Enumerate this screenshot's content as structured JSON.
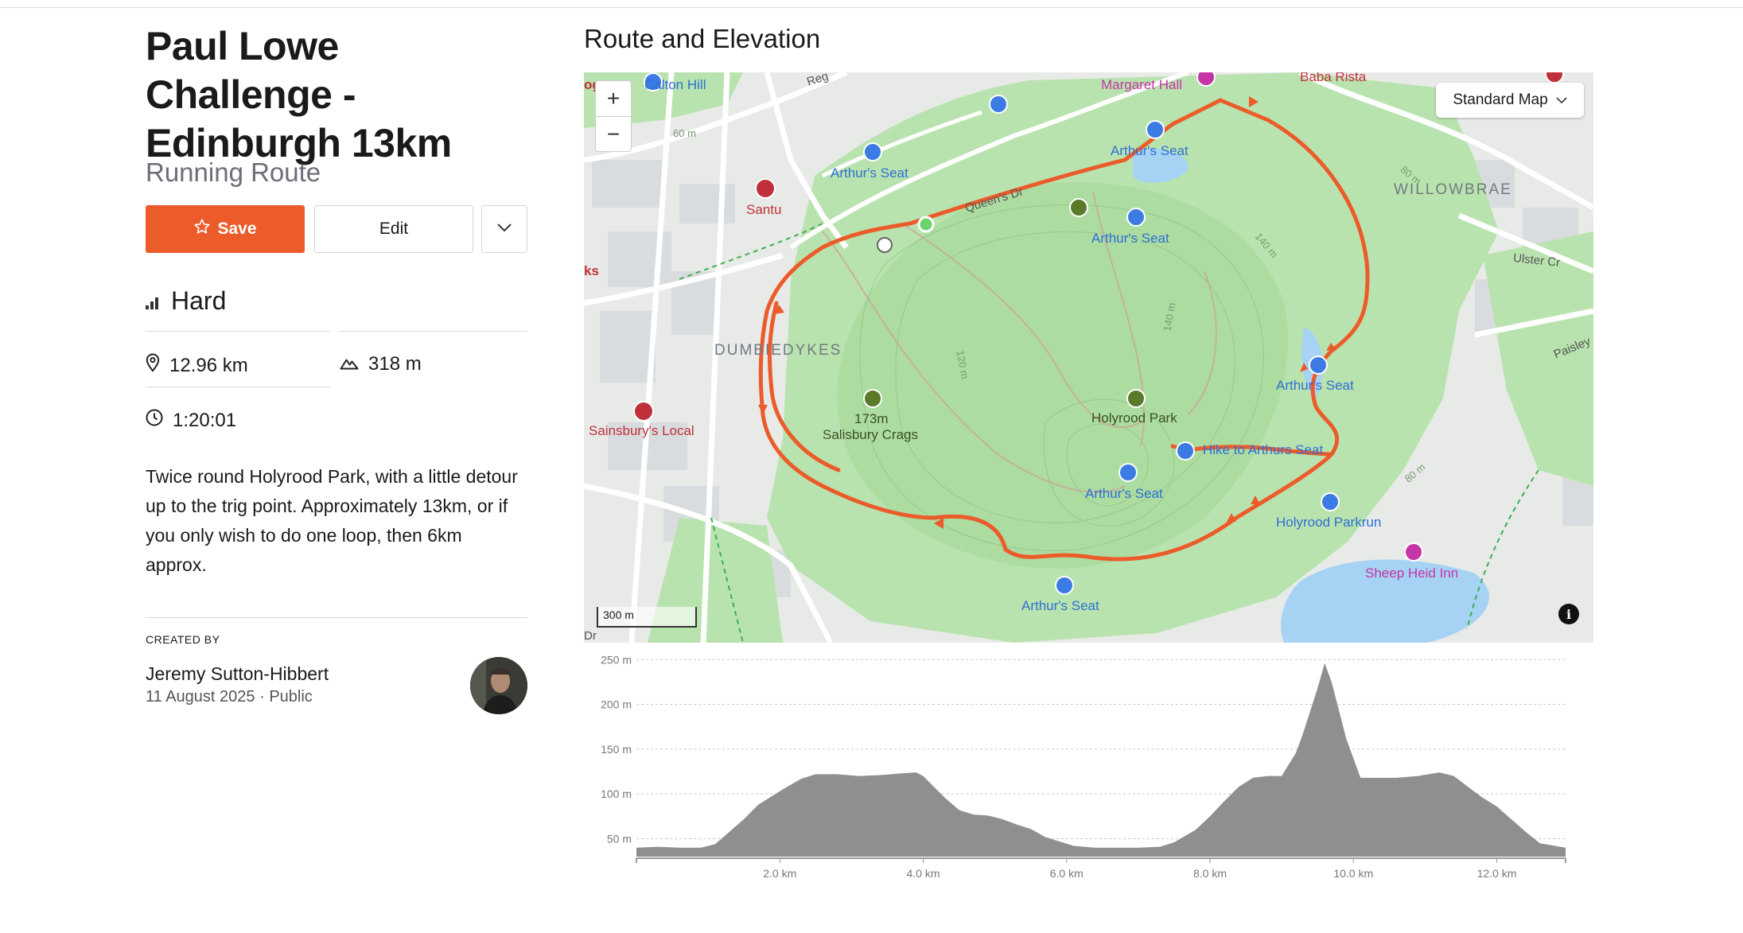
{
  "route": {
    "title": "Paul Lowe Challenge - Edinburgh 13km",
    "type": "Running Route",
    "save_label": "Save",
    "edit_label": "Edit",
    "difficulty": "Hard",
    "distance": "12.96 km",
    "elevation_gain": "318 m",
    "duration": "1:20:01",
    "description": "Twice round Holyrood Park, with a little detour up to the trig point. Approximately 13km, or if you only wish to do one loop, then 6km approx.",
    "created_by_label": "CREATED BY",
    "author": "Jeremy Sutton-Hibbert",
    "date": "11 August 2025",
    "visibility": "Public",
    "accent_color": "#ec5b2a"
  },
  "map": {
    "section_title": "Route and Elevation",
    "map_type": "Standard Map",
    "scale_label": "300 m",
    "zoom_in": "+",
    "zoom_out": "−",
    "labels": {
      "calton_hill": "Calton Hill",
      "margaret_hall": "Margaret Hall",
      "baba_rista": "Baba Rista",
      "arthurs_seat_1": "Arthur's Seat",
      "arthurs_seat_2": "Arthur's Seat",
      "arthurs_seat_3": "Arthur's Seat",
      "arthurs_seat_4": "Arthur's Seat",
      "arthurs_seat_5": "Arthur's Seat",
      "arthurs_seat_6": "Arthur's Seat",
      "santu": "Santu",
      "queens_dr": "Queen's Dr",
      "willowbrae": "WILLOWBRAE",
      "ulster_cr": "Ulster Cr",
      "paisley": "Paisley",
      "dumbiedykes": "DUMBIEDYKES",
      "sainsburys": "Sainsbury's Local",
      "summit_height": "173m",
      "salisbury_crags": "Salisbury Crags",
      "holyrood_park": "Holyrood Park",
      "hike": "Hike to Arthurs Seat",
      "holyrood_parkrun": "Holyrood Parkrun",
      "sheep_heid": "Sheep Heid Inn",
      "contour_80a": "80 m",
      "contour_80b": "80 m",
      "contour_140a": "140 m",
      "contour_140b": "140 m",
      "contour_120": "120 m",
      "contour_60": "60 m",
      "edge_ks": "ks",
      "edge_og": "og",
      "edge_reg": "Reg",
      "edge_dr": "Dr"
    }
  },
  "chart_data": {
    "type": "area",
    "title": "",
    "xlabel": "",
    "ylabel": "",
    "x_ticks": [
      "2.0 km",
      "4.0 km",
      "6.0 km",
      "8.0 km",
      "10.0 km",
      "12.0 km"
    ],
    "x_tick_values": [
      2,
      4,
      6,
      8,
      10,
      12
    ],
    "y_ticks": [
      "50 m",
      "100 m",
      "150 m",
      "200 m",
      "250 m"
    ],
    "y_tick_values": [
      50,
      100,
      150,
      200,
      250
    ],
    "xlim": [
      0,
      12.96
    ],
    "ylim": [
      30,
      252
    ],
    "grid": true,
    "fill_color": "#8f8f8f",
    "x": [
      0,
      0.3,
      0.6,
      0.9,
      1.1,
      1.3,
      1.5,
      1.7,
      1.9,
      2.1,
      2.3,
      2.5,
      2.8,
      3.1,
      3.4,
      3.7,
      3.9,
      4.0,
      4.1,
      4.3,
      4.5,
      4.7,
      4.9,
      5.1,
      5.3,
      5.5,
      5.7,
      5.9,
      6.1,
      6.4,
      6.7,
      7.0,
      7.3,
      7.5,
      7.8,
      8.0,
      8.2,
      8.4,
      8.6,
      8.8,
      9.0,
      9.2,
      9.3,
      9.5,
      9.6,
      9.7,
      9.9,
      10.1,
      10.2,
      10.4,
      10.6,
      10.9,
      11.2,
      11.4,
      11.6,
      11.8,
      12.0,
      12.2,
      12.4,
      12.6,
      12.96
    ],
    "y": [
      40,
      41,
      40,
      40,
      44,
      58,
      72,
      88,
      98,
      108,
      117,
      122,
      122,
      120,
      121,
      123,
      124,
      120,
      112,
      96,
      82,
      77,
      76,
      72,
      66,
      61,
      52,
      47,
      42,
      40,
      40,
      40,
      41,
      46,
      60,
      75,
      92,
      108,
      118,
      120,
      120,
      146,
      168,
      218,
      246,
      224,
      162,
      118,
      118,
      118,
      118,
      120,
      124,
      120,
      108,
      96,
      86,
      72,
      58,
      45,
      40
    ]
  }
}
